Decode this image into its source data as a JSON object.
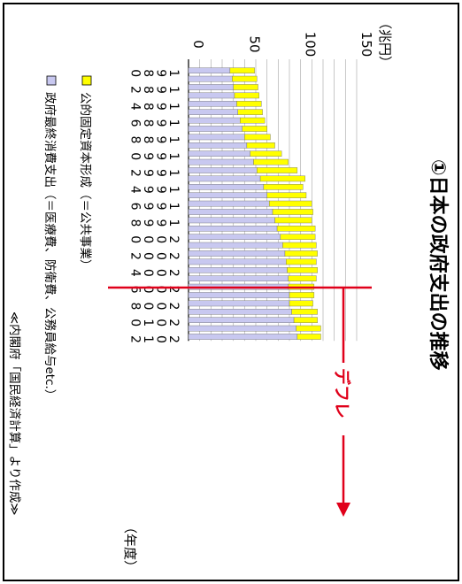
{
  "chart_data": {
    "type": "bar",
    "stacked": true,
    "orientation": "horizontal",
    "rotated_page": true,
    "title": "①日本の政府支出の推移",
    "unit_label": "（兆円）",
    "year_axis_label": "（年度）",
    "value_axis": {
      "min": 0,
      "max": 150,
      "ticks": [
        0,
        50,
        100,
        150
      ],
      "grid": true
    },
    "categories": [
      1980,
      1981,
      1982,
      1983,
      1984,
      1985,
      1986,
      1987,
      1988,
      1989,
      1990,
      1991,
      1992,
      1993,
      1994,
      1995,
      1996,
      1997,
      1998,
      1999,
      2000,
      2001,
      2002,
      2003,
      2004,
      2005,
      2006,
      2007,
      2008,
      2009,
      2010,
      2011,
      2012
    ],
    "category_tick_labels": [
      "1980",
      "1982",
      "1984",
      "1986",
      "1988",
      "1990",
      "1992",
      "1994",
      "1996",
      "1998",
      "2000",
      "2002",
      "2004",
      "2006",
      "2008",
      "2010",
      "2012"
    ],
    "series": [
      {
        "name": "政府最終消費支出（＝医療費、防衛費、公務員給与etc.）",
        "color": "#c8c8f0",
        "values": [
          37,
          39,
          40,
          41,
          43,
          44,
          46,
          48,
          50,
          52,
          55,
          58,
          61,
          64,
          67,
          70,
          72,
          75,
          77,
          79,
          82,
          84,
          86,
          87,
          88,
          89,
          89,
          90,
          90,
          92,
          94,
          96,
          97
        ]
      },
      {
        "name": "公的固定資本形成（＝公共事業）",
        "color": "#ffff00",
        "values": [
          22,
          22,
          22,
          22,
          22,
          22,
          22,
          22,
          23,
          25,
          28,
          31,
          36,
          40,
          35,
          35,
          38,
          36,
          33,
          34,
          31,
          30,
          29,
          27,
          27,
          25,
          23,
          22,
          21,
          23,
          21,
          22,
          21
        ]
      }
    ],
    "legend_placement": "left",
    "annotations": {
      "deflation_label": "デフレ",
      "source": "≪内閣府「国民経済計算」より作成≫"
    },
    "deflation_start_year": 1997
  },
  "colors": {
    "accent_red": "#e0001a",
    "gridline": "#b0b0b0"
  }
}
